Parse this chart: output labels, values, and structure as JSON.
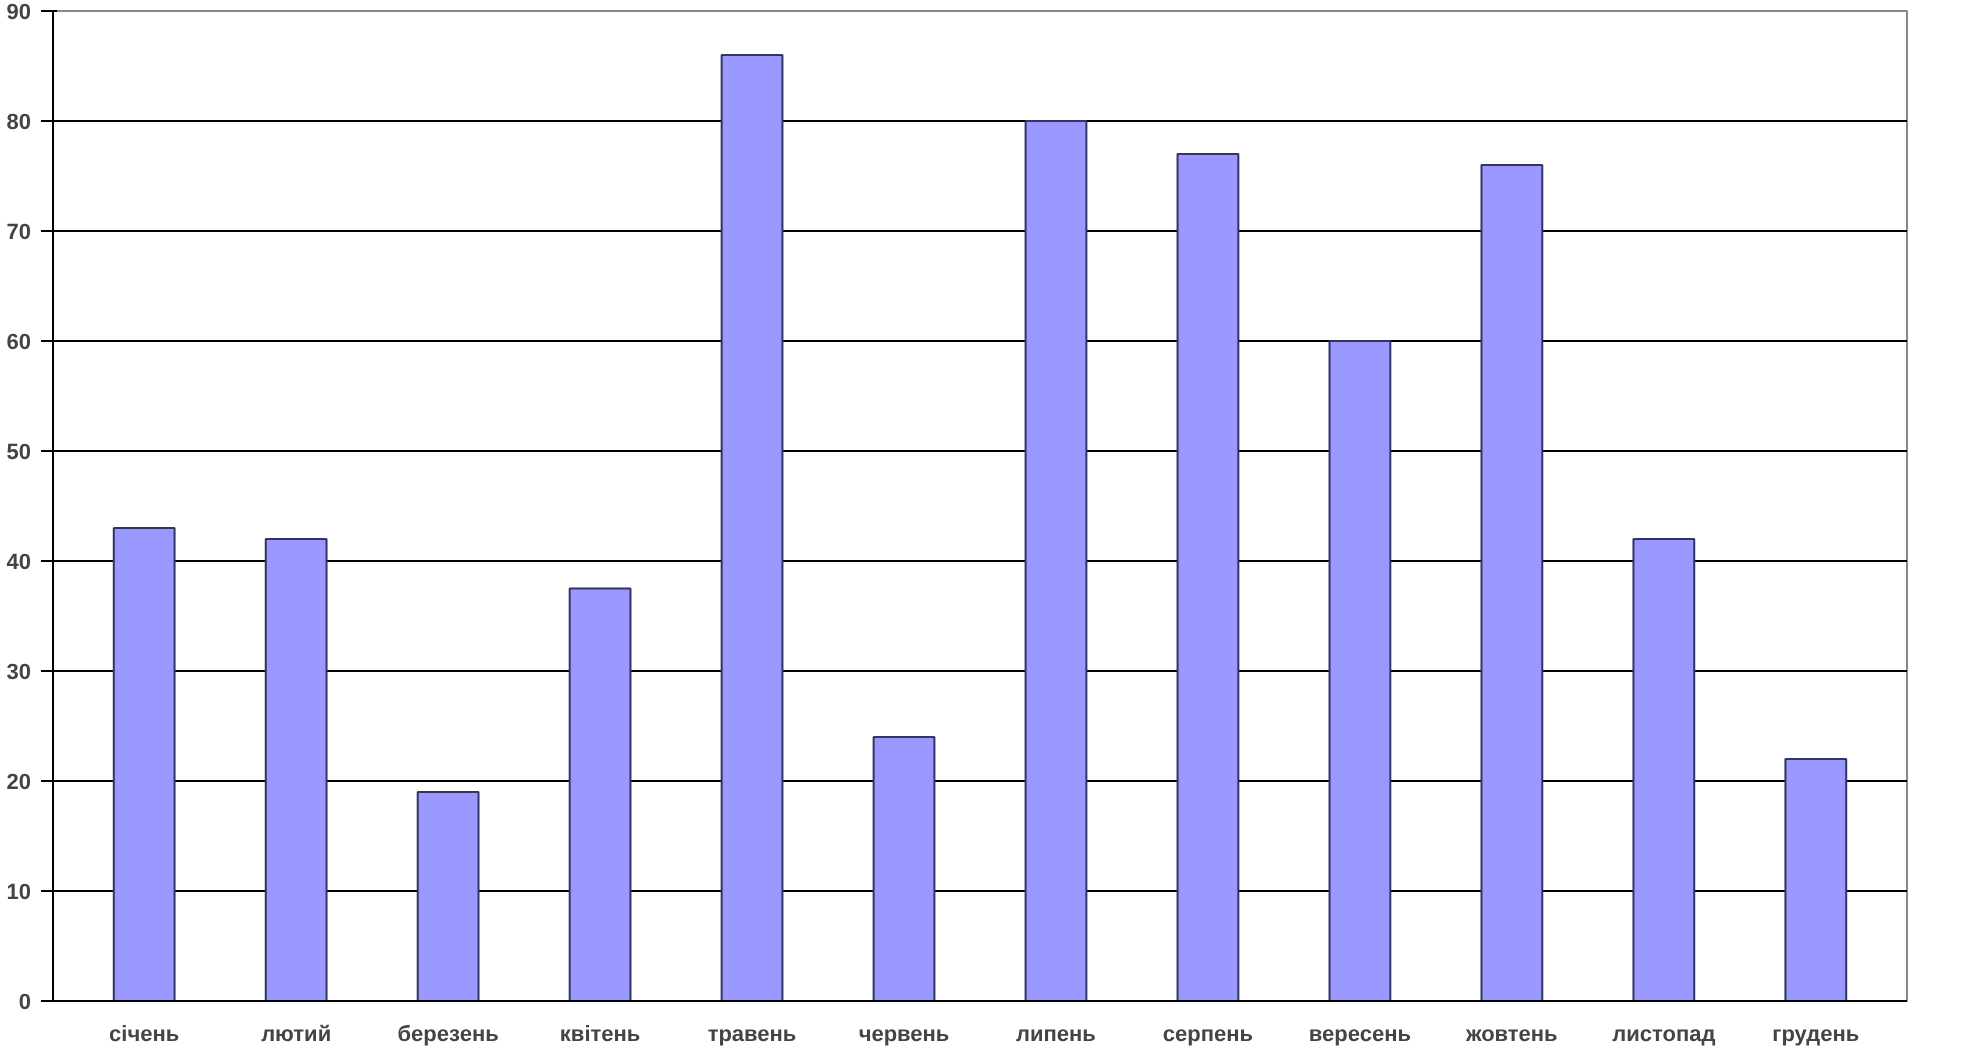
{
  "chart_data": {
    "type": "bar",
    "categories": [
      "січень",
      "лютий",
      "березень",
      "квітень",
      "травень",
      "червень",
      "липень",
      "серпень",
      "вересень",
      "жовтень",
      "листопад",
      "грудень"
    ],
    "values": [
      43,
      42,
      19,
      37.5,
      86,
      24,
      80,
      77,
      60,
      76,
      42,
      22
    ],
    "color": "#9999ff",
    "ylim": [
      0,
      90
    ],
    "yticks": [
      0,
      10,
      20,
      30,
      40,
      50,
      60,
      70,
      80,
      90
    ],
    "grid": "y"
  }
}
